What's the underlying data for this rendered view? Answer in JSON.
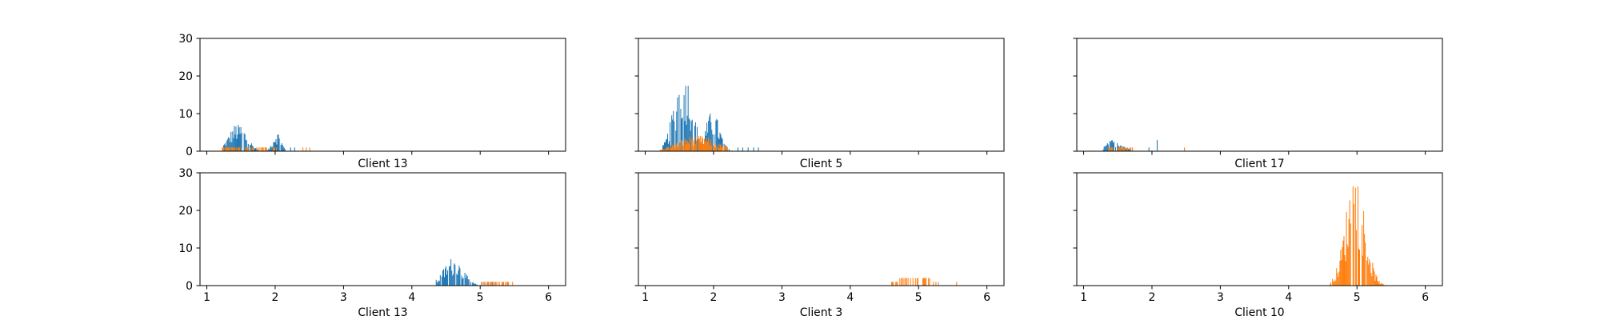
{
  "chart_data": [
    {
      "type": "histogram",
      "xlabel": "Client 13",
      "xlim": [
        0.9,
        6.25
      ],
      "ylim": [
        0,
        30
      ],
      "xticks": [
        1,
        2,
        3,
        4,
        5,
        6
      ],
      "yticks": [
        0,
        10,
        20,
        30
      ],
      "show_xtick_labels": false,
      "show_ytick_labels": true,
      "series": [
        {
          "color": "#1f77b4",
          "peaks": [
            {
              "range": [
                1.24,
                1.75
              ],
              "center": 1.45,
              "height": 7,
              "spread": 0.13
            },
            {
              "range": [
                1.85,
                2.15
              ],
              "center": 2.02,
              "height": 5,
              "spread": 0.06
            }
          ],
          "sparse": [
            [
              2.22,
              1
            ],
            [
              2.28,
              1
            ]
          ]
        },
        {
          "color": "#ff7f0e",
          "peaks": [
            {
              "range": [
                1.22,
                2.05
              ],
              "center": 1.5,
              "height": 1,
              "spread": 0.3
            }
          ],
          "sparse": [
            [
              2.4,
              1
            ],
            [
              2.45,
              1
            ],
            [
              2.5,
              1
            ]
          ]
        }
      ]
    },
    {
      "type": "histogram",
      "xlabel": "Client 5",
      "xlim": [
        0.9,
        6.25
      ],
      "ylim": [
        0,
        30
      ],
      "xticks": [
        1,
        2,
        3,
        4,
        5,
        6
      ],
      "yticks": [
        0,
        10,
        20,
        30
      ],
      "show_xtick_labels": false,
      "show_ytick_labels": false,
      "series": [
        {
          "color": "#1f77b4",
          "peaks": [
            {
              "range": [
                1.25,
                1.82
              ],
              "center": 1.55,
              "height": 21,
              "spread": 0.13
            },
            {
              "range": [
                1.8,
                2.3
              ],
              "center": 1.98,
              "height": 10,
              "spread": 0.1
            }
          ],
          "sparse": [
            [
              2.35,
              1
            ],
            [
              2.42,
              1
            ],
            [
              2.5,
              1
            ],
            [
              2.58,
              1
            ],
            [
              2.65,
              1
            ]
          ]
        },
        {
          "color": "#ff7f0e",
          "peaks": [
            {
              "range": [
                1.2,
                2.2
              ],
              "center": 1.75,
              "height": 4,
              "spread": 0.28
            }
          ],
          "sparse": []
        }
      ]
    },
    {
      "type": "histogram",
      "xlabel": "Client 17",
      "xlim": [
        0.9,
        6.25
      ],
      "ylim": [
        0,
        30
      ],
      "xticks": [
        1,
        2,
        3,
        4,
        5,
        6
      ],
      "yticks": [
        0,
        10,
        20,
        30
      ],
      "show_xtick_labels": false,
      "show_ytick_labels": false,
      "series": [
        {
          "color": "#1f77b4",
          "peaks": [
            {
              "range": [
                1.27,
                1.72
              ],
              "center": 1.45,
              "height": 3,
              "spread": 0.12
            }
          ],
          "sparse": [
            [
              1.95,
              1
            ],
            [
              2.07,
              3
            ]
          ]
        },
        {
          "color": "#ff7f0e",
          "peaks": [
            {
              "range": [
                1.35,
                1.72
              ],
              "center": 1.55,
              "height": 1,
              "spread": 0.15
            }
          ],
          "sparse": [
            [
              2.47,
              1
            ]
          ]
        }
      ]
    },
    {
      "type": "histogram",
      "xlabel": "Client 13",
      "xlim": [
        0.9,
        6.25
      ],
      "ylim": [
        0,
        30
      ],
      "xticks": [
        1,
        2,
        3,
        4,
        5,
        6
      ],
      "yticks": [
        0,
        10,
        20,
        30
      ],
      "show_xtick_labels": true,
      "show_ytick_labels": true,
      "series": [
        {
          "color": "#1f77b4",
          "peaks": [
            {
              "range": [
                4.35,
                4.95
              ],
              "center": 4.6,
              "height": 7,
              "spread": 0.14
            }
          ],
          "sparse": [
            [
              5.05,
              1
            ],
            [
              5.12,
              1
            ],
            [
              5.18,
              1
            ]
          ]
        },
        {
          "color": "#ff7f0e",
          "peaks": [
            {
              "range": [
                5.0,
                5.5
              ],
              "center": 5.2,
              "height": 1,
              "spread": 0.15
            }
          ],
          "sparse": []
        }
      ]
    },
    {
      "type": "histogram",
      "xlabel": "Client 3",
      "xlim": [
        0.9,
        6.25
      ],
      "ylim": [
        0,
        30
      ],
      "xticks": [
        1,
        2,
        3,
        4,
        5,
        6
      ],
      "yticks": [
        0,
        10,
        20,
        30
      ],
      "show_xtick_labels": true,
      "show_ytick_labels": false,
      "series": [
        {
          "color": "#ff7f0e",
          "peaks": [
            {
              "range": [
                4.6,
                5.3
              ],
              "center": 4.95,
              "height": 2,
              "spread": 0.25
            }
          ],
          "sparse": [
            [
              5.55,
              1
            ]
          ]
        }
      ]
    },
    {
      "type": "histogram",
      "xlabel": "Client 10",
      "xlim": [
        0.9,
        6.25
      ],
      "ylim": [
        0,
        30
      ],
      "xticks": [
        1,
        2,
        3,
        4,
        5,
        6
      ],
      "yticks": [
        0,
        10,
        20,
        30
      ],
      "show_xtick_labels": true,
      "show_ytick_labels": false,
      "series": [
        {
          "color": "#ff7f0e",
          "peaks": [
            {
              "range": [
                4.6,
                5.7
              ],
              "center": 4.97,
              "height": 29,
              "spread": 0.14
            }
          ],
          "sparse": []
        }
      ]
    }
  ]
}
